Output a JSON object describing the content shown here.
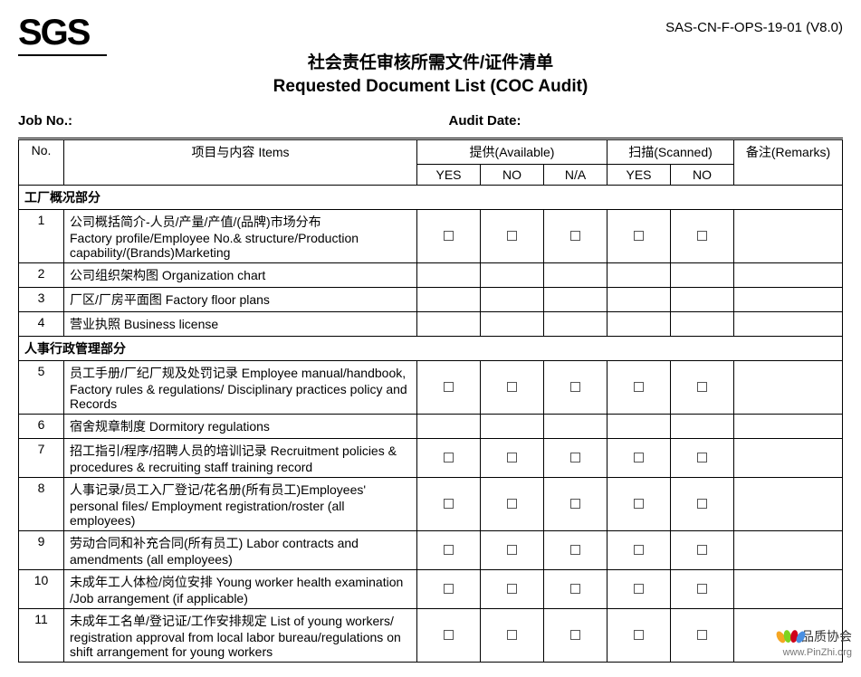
{
  "doc_code": "SAS-CN-F-OPS-19-01 (V8.0)",
  "logo_text": "SGS",
  "title_cn": "社会责任审核所需文件/证件清单",
  "title_en": "Requested Document List (COC Audit)",
  "job_no_label": "Job No.:",
  "audit_date_label": "Audit Date:",
  "headers": {
    "no": "No.",
    "items": "项目与内容 Items",
    "available": "提供(Available)",
    "scanned": "扫描(Scanned)",
    "remarks": "备注(Remarks)",
    "yes": "YES",
    "no_h": "NO",
    "na": "N/A"
  },
  "sections": [
    {
      "title": "工厂概况部分",
      "rows": [
        {
          "no": "1",
          "item": "公司概括简介-人员/产量/产值/(品牌)市场分布\nFactory profile/Employee No.& structure/Production capability/(Brands)Marketing",
          "checks": true
        },
        {
          "no": "2",
          "item": "公司组织架构图 Organization chart",
          "checks": false
        },
        {
          "no": "3",
          "item": "厂区/厂房平面图 Factory floor plans",
          "checks": false
        },
        {
          "no": "4",
          "item": "营业执照 Business license",
          "checks": false
        }
      ]
    },
    {
      "title": "人事行政管理部分",
      "rows": [
        {
          "no": "5",
          "item": "员工手册/厂纪厂规及处罚记录 Employee manual/handbook, Factory rules & regulations/ Disciplinary practices policy and Records",
          "checks": true
        },
        {
          "no": "6",
          "item": "宿舍规章制度 Dormitory regulations",
          "checks": false
        },
        {
          "no": "7",
          "item": "招工指引/程序/招聘人员的培训记录 Recruitment policies & procedures & recruiting staff training record",
          "checks": true
        },
        {
          "no": "8",
          "item": "人事记录/员工入厂登记/花名册(所有员工)Employees' personal files/ Employment registration/roster (all employees)",
          "checks": true
        },
        {
          "no": "9",
          "item": "劳动合同和补充合同(所有员工) Labor contracts and amendments (all employees)",
          "checks": true
        },
        {
          "no": "10",
          "item": "未成年工人体检/岗位安排  Young worker health examination /Job arrangement (if applicable)",
          "checks": true
        },
        {
          "no": "11",
          "item": "未成年工名单/登记证/工作安排规定 List of young workers/ registration approval from local labor bureau/regulations on shift arrangement for young workers",
          "checks": true
        }
      ]
    }
  ],
  "footer": {
    "cn": "品质协会",
    "url": "www.PinZhi.org",
    "petal_colors": [
      "#f5a623",
      "#7ed321",
      "#d0021b",
      "#4a90e2"
    ]
  },
  "style": {
    "text_color": "#000000",
    "border_color": "#000000",
    "background": "#ffffff",
    "header_fontsize": 19,
    "body_fontsize": 14
  }
}
